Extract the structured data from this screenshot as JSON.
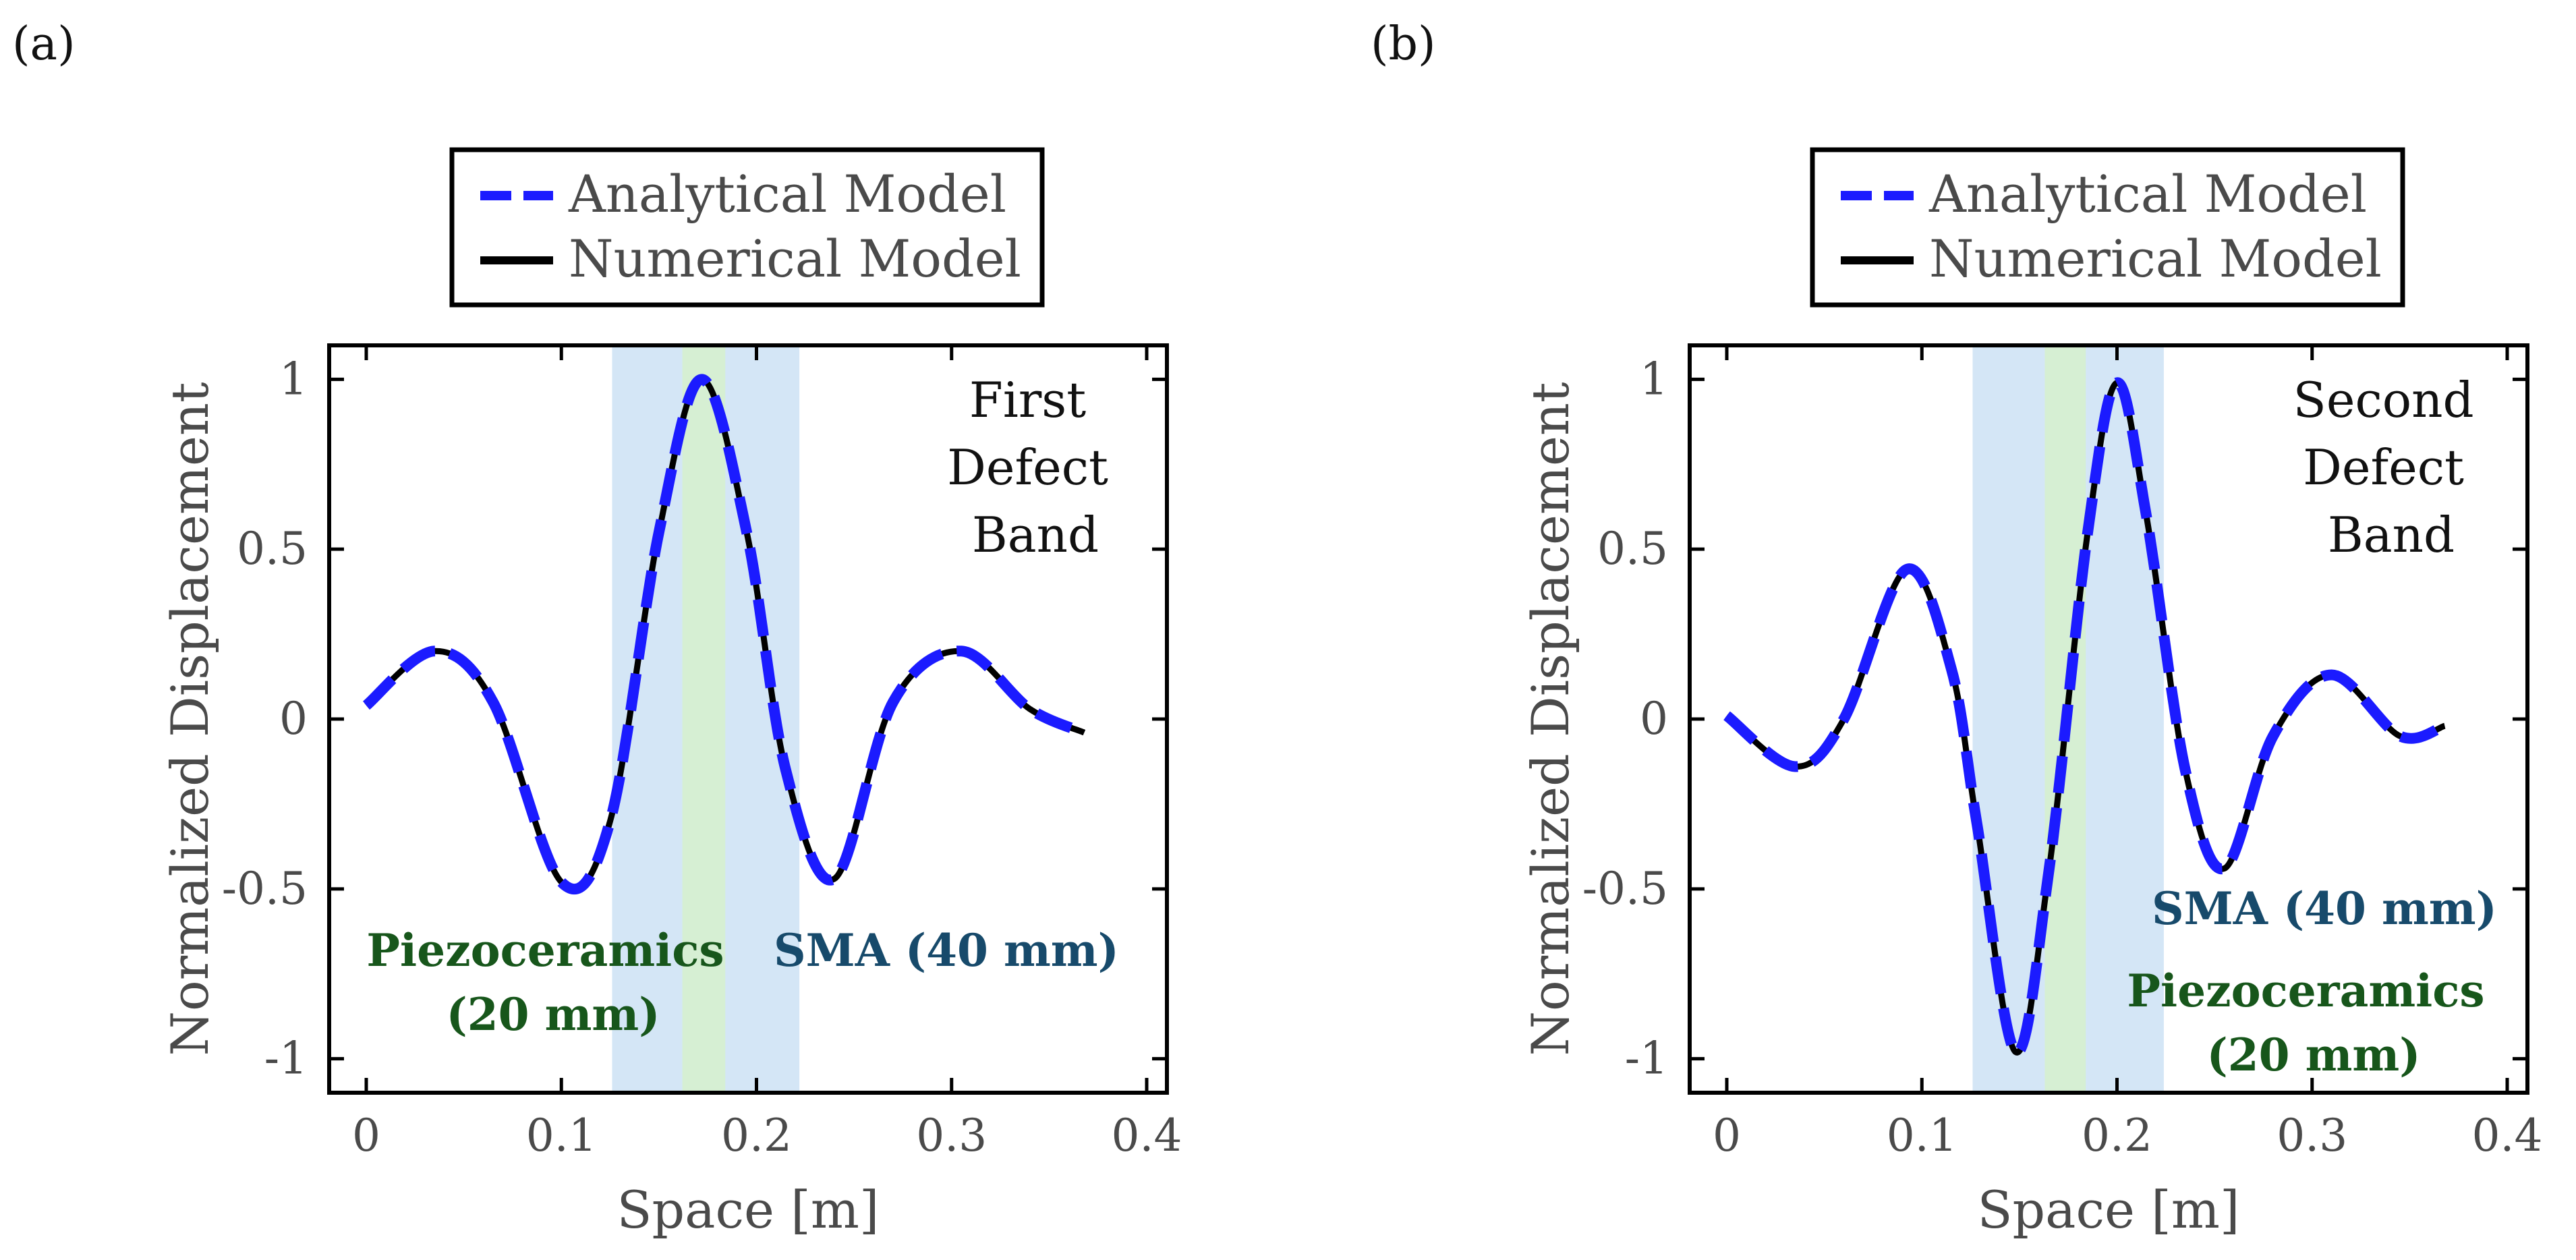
{
  "chart_data": [
    {
      "type": "line",
      "panel_label": "(a)",
      "xlabel": "Space [m]",
      "ylabel": "Normalized Displacement",
      "xlim": [
        0,
        0.4
      ],
      "ylim": [
        -1.1,
        1.1
      ],
      "x_ticks": [
        "0",
        "0.1",
        "0.2",
        "0.3",
        "0.4"
      ],
      "y_ticks": [
        "1",
        "0.5",
        "0",
        "-0.5",
        "-1"
      ],
      "band_label": [
        "First",
        "Defect",
        "Band"
      ],
      "legend": [
        "Analytical Model",
        "Numerical Model"
      ],
      "regions": [
        {
          "name": "SMA",
          "x_range": [
            0.126,
            0.222
          ],
          "color": "#d4e6f6"
        },
        {
          "name": "Piezoceramics",
          "x_range": [
            0.162,
            0.184
          ],
          "color": "#d6efd3"
        }
      ],
      "annotations": {
        "piezo": [
          "Piezoceramics",
          "(20 mm)"
        ],
        "sma": [
          "SMA (40 mm)"
        ]
      },
      "series": [
        {
          "name": "Analytical Model",
          "style": "dashed",
          "color": "#1b1bff",
          "x": [
            0,
            0.035,
            0.065,
            0.1,
            0.125,
            0.15,
            0.172,
            0.195,
            0.215,
            0.24,
            0.27,
            0.305,
            0.34,
            0.368
          ],
          "y": [
            0.04,
            0.2,
            0.05,
            -0.48,
            -0.3,
            0.55,
            1.0,
            0.55,
            -0.15,
            -0.47,
            0.05,
            0.2,
            0.03,
            -0.04
          ]
        },
        {
          "name": "Numerical Model",
          "style": "solid",
          "color": "#000000",
          "x": [
            0,
            0.035,
            0.065,
            0.1,
            0.125,
            0.15,
            0.172,
            0.195,
            0.215,
            0.24,
            0.27,
            0.305,
            0.34,
            0.368
          ],
          "y": [
            0.04,
            0.2,
            0.05,
            -0.48,
            -0.3,
            0.55,
            1.0,
            0.55,
            -0.15,
            -0.47,
            0.05,
            0.2,
            0.03,
            -0.04
          ]
        }
      ]
    },
    {
      "type": "line",
      "panel_label": "(b)",
      "xlabel": "Space [m]",
      "ylabel": "Normalized Displacement",
      "xlim": [
        0,
        0.4
      ],
      "ylim": [
        -1.1,
        1.1
      ],
      "x_ticks": [
        "0",
        "0.1",
        "0.2",
        "0.3",
        "0.4"
      ],
      "y_ticks": [
        "1",
        "0.5",
        "0",
        "-0.5",
        "-1"
      ],
      "band_label": [
        "Second",
        "Defect",
        "Band"
      ],
      "legend": [
        "Analytical Model",
        "Numerical Model"
      ],
      "regions": [
        {
          "name": "SMA",
          "x_range": [
            0.126,
            0.224
          ],
          "color": "#d4e6f6"
        },
        {
          "name": "Piezoceramics",
          "x_range": [
            0.163,
            0.184
          ],
          "color": "#d6efd3"
        }
      ],
      "annotations": {
        "sma": [
          "SMA (40 mm)"
        ],
        "piezo": [
          "Piezoceramics",
          "(20 mm)"
        ]
      },
      "series": [
        {
          "name": "Analytical Model",
          "style": "dashed",
          "color": "#1b1bff",
          "x": [
            0,
            0.035,
            0.06,
            0.092,
            0.115,
            0.128,
            0.148,
            0.165,
            0.185,
            0.2,
            0.215,
            0.235,
            0.255,
            0.28,
            0.31,
            0.345,
            0.368
          ],
          "y": [
            0.01,
            -0.14,
            0.0,
            0.44,
            0.15,
            -0.3,
            -0.98,
            -0.45,
            0.55,
            0.99,
            0.6,
            -0.15,
            -0.44,
            -0.05,
            0.13,
            -0.05,
            -0.02
          ]
        },
        {
          "name": "Numerical Model",
          "style": "solid",
          "color": "#000000",
          "x": [
            0,
            0.035,
            0.06,
            0.092,
            0.115,
            0.128,
            0.148,
            0.165,
            0.185,
            0.2,
            0.215,
            0.235,
            0.255,
            0.28,
            0.31,
            0.345,
            0.368
          ],
          "y": [
            0.01,
            -0.14,
            0.0,
            0.44,
            0.15,
            -0.3,
            -0.98,
            -0.45,
            0.55,
            0.99,
            0.6,
            -0.15,
            -0.44,
            -0.05,
            0.13,
            -0.05,
            -0.02
          ]
        }
      ]
    }
  ]
}
